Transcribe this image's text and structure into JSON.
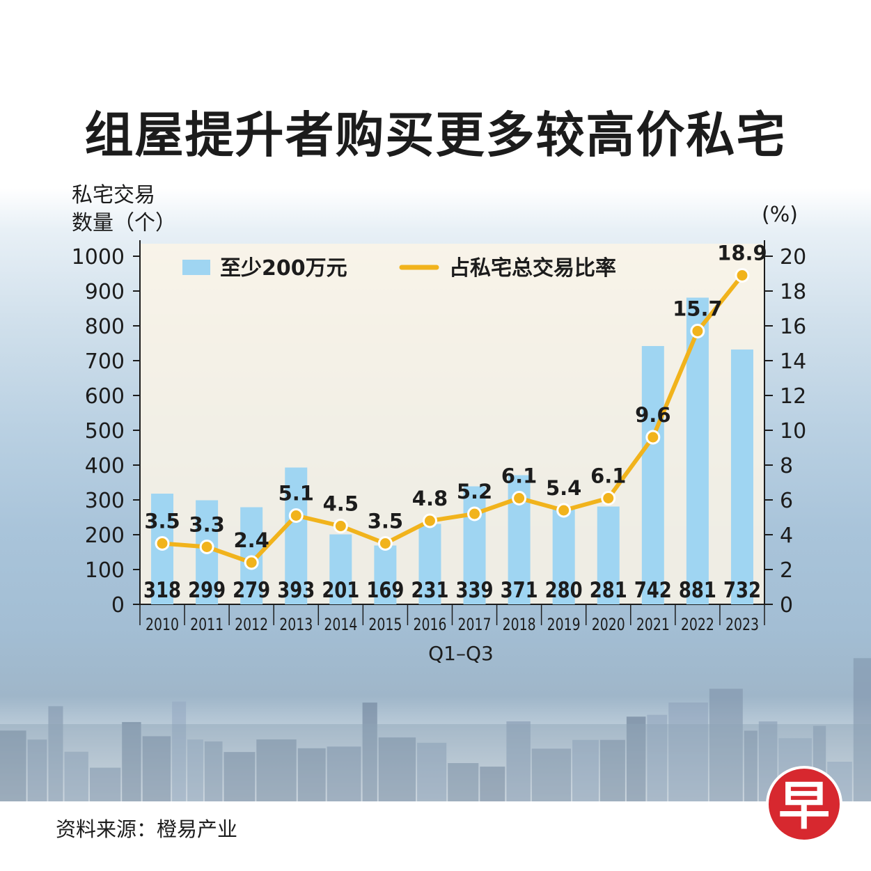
{
  "title": "组屋提升者购买更多较高价私宅",
  "left_axis_label_line1": "私宅交易",
  "left_axis_label_line2": "数量（个）",
  "right_axis_label": "(%)",
  "source": "资料来源：橙易产业",
  "logo_char": "早",
  "colors": {
    "bar": "#9fd5f2",
    "line": "#f1b31c",
    "text": "#1c1c1c",
    "logo": "#d7282f"
  },
  "chart_data": {
    "type": "bar",
    "categories": [
      "2010",
      "2011",
      "2012",
      "2013",
      "2014",
      "2015",
      "2016",
      "2017",
      "2018",
      "2019",
      "2020",
      "2021",
      "2022",
      "2023"
    ],
    "category_note": "Q1–Q3",
    "series": [
      {
        "name": "至少200万元",
        "type": "bar",
        "axis": "left",
        "values": [
          318,
          299,
          279,
          393,
          201,
          169,
          231,
          339,
          371,
          280,
          281,
          742,
          881,
          732
        ]
      },
      {
        "name": "占私宅总交易比率",
        "type": "line",
        "axis": "right",
        "values": [
          3.5,
          3.3,
          2.4,
          5.1,
          4.5,
          3.5,
          4.8,
          5.2,
          6.1,
          5.4,
          6.1,
          9.6,
          15.7,
          18.9
        ]
      }
    ],
    "left_axis": {
      "ylim": [
        0,
        1000
      ],
      "ticks": [
        "0",
        "100",
        "200",
        "300",
        "400",
        "500",
        "600",
        "700",
        "800",
        "900",
        "1000"
      ]
    },
    "right_axis": {
      "ylim": [
        0,
        20
      ],
      "ticks": [
        "0",
        "2",
        "4",
        "6",
        "8",
        "10",
        "12",
        "14",
        "16",
        "18",
        "20"
      ]
    },
    "grid": false,
    "legend": "top"
  }
}
